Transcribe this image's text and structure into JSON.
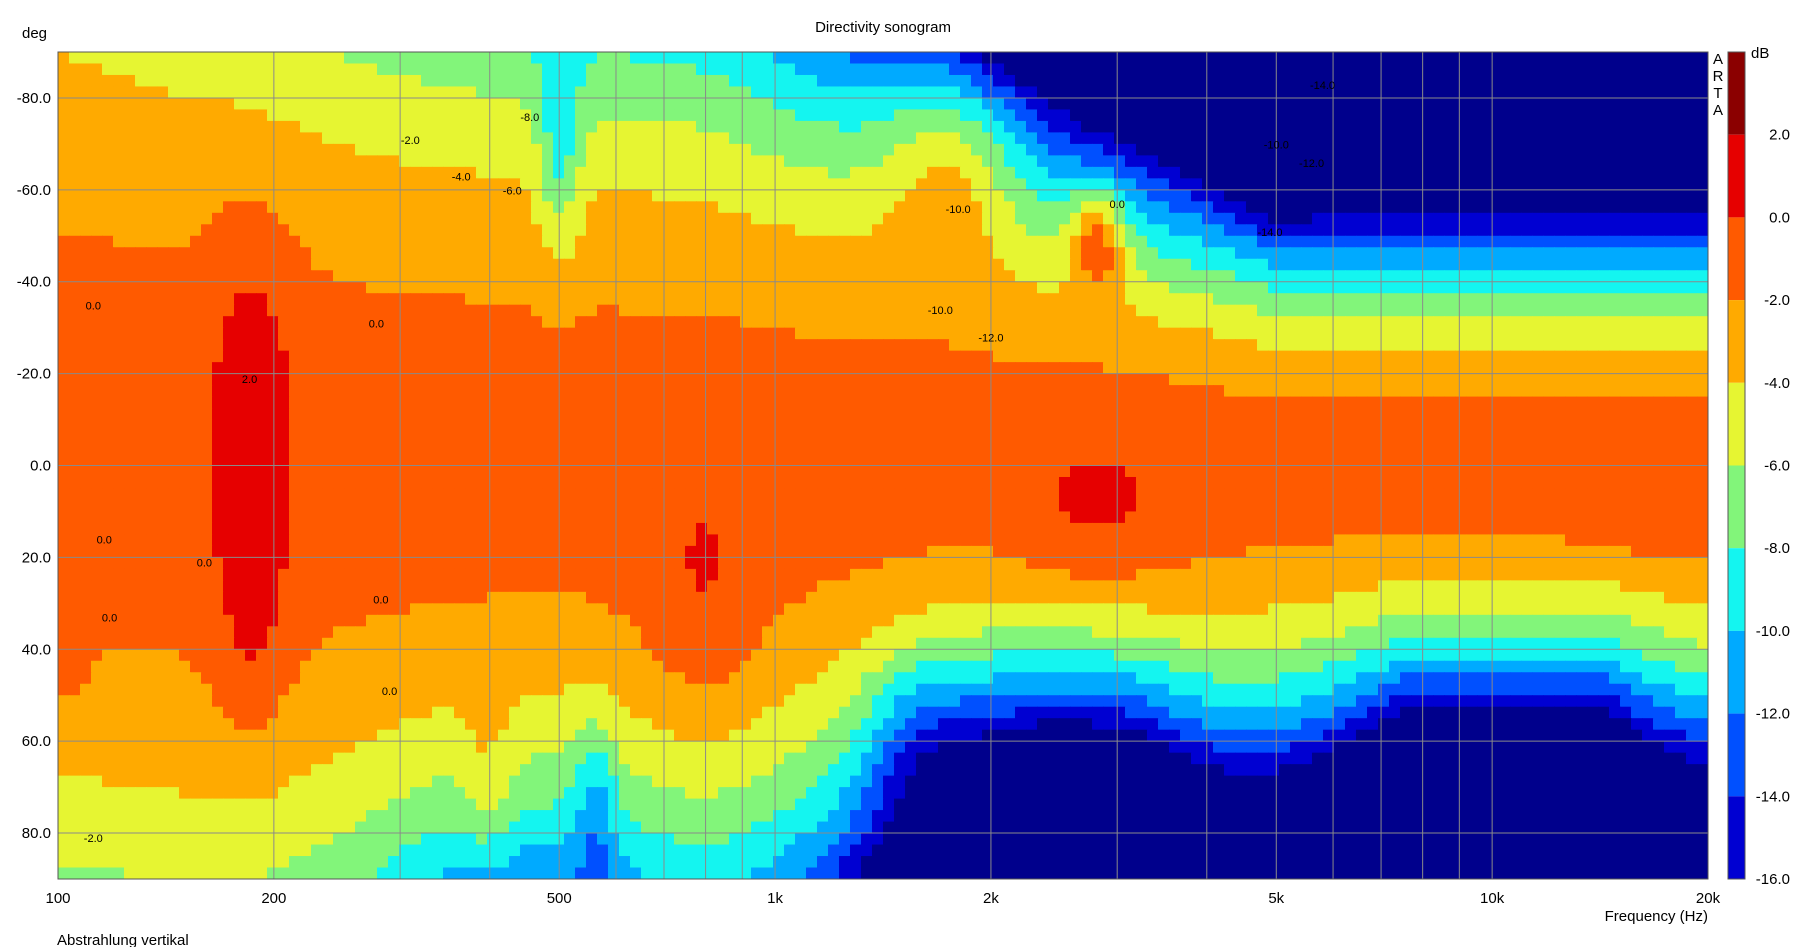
{
  "chart_data": {
    "type": "heatmap",
    "title": "Directivity sonogram",
    "xlabel": "Frequency (Hz)",
    "ylabel": "deg",
    "footer": "Abstrahlung vertikal",
    "watermark": [
      "A",
      "R",
      "T",
      "A"
    ],
    "x_scale": "log",
    "xlim": [
      100,
      20000
    ],
    "ylim": [
      -90,
      90
    ],
    "grid": true,
    "x_ticks": [
      {
        "value": 100,
        "label": "100"
      },
      {
        "value": 200,
        "label": "200"
      },
      {
        "value": 500,
        "label": "500"
      },
      {
        "value": 1000,
        "label": "1k"
      },
      {
        "value": 2000,
        "label": "2k"
      },
      {
        "value": 5000,
        "label": "5k"
      },
      {
        "value": 10000,
        "label": "10k"
      },
      {
        "value": 20000,
        "label": "20k"
      }
    ],
    "y_ticks": [
      {
        "value": -80,
        "label": "-80.0"
      },
      {
        "value": -60,
        "label": "-60.0"
      },
      {
        "value": -40,
        "label": "-40.0"
      },
      {
        "value": -20,
        "label": "-20.0"
      },
      {
        "value": 0,
        "label": "0.0"
      },
      {
        "value": 20,
        "label": "20.0"
      },
      {
        "value": 40,
        "label": "40.0"
      },
      {
        "value": 60,
        "label": "60.0"
      },
      {
        "value": 80,
        "label": "80.0"
      }
    ],
    "colorbar": {
      "unit": "dB",
      "range": [
        -16,
        4
      ],
      "ticks": [
        "2.0",
        "0.0",
        "-2.0",
        "-4.0",
        "-6.0",
        "-8.0",
        "-10.0",
        "-12.0",
        "-14.0",
        "-16.0"
      ],
      "levels": [
        {
          "min": 2,
          "max": 4,
          "color": "#8b0000"
        },
        {
          "min": 0,
          "max": 2,
          "color": "#e60000"
        },
        {
          "min": -2,
          "max": 0,
          "color": "#ff5a00"
        },
        {
          "min": -4,
          "max": -2,
          "color": "#ffaa00"
        },
        {
          "min": -6,
          "max": -4,
          "color": "#e6f532"
        },
        {
          "min": -8,
          "max": -6,
          "color": "#82f57a"
        },
        {
          "min": -10,
          "max": -8,
          "color": "#14f5f0"
        },
        {
          "min": -12,
          "max": -10,
          "color": "#00aaff"
        },
        {
          "min": -14,
          "max": -12,
          "color": "#0050ff"
        },
        {
          "min": -16,
          "max": -14,
          "color": "#0000d2"
        }
      ],
      "below_color": "#00008c"
    },
    "contour_labels": [
      {
        "f": 112,
        "deg": -34,
        "text": "0.0"
      },
      {
        "f": 278,
        "deg": -30,
        "text": "0.0"
      },
      {
        "f": 185,
        "deg": -18,
        "text": "2.0"
      },
      {
        "f": 116,
        "deg": 17,
        "text": "0.0"
      },
      {
        "f": 160,
        "deg": 22,
        "text": "0.0"
      },
      {
        "f": 118,
        "deg": 34,
        "text": "0.0"
      },
      {
        "f": 282,
        "deg": 30,
        "text": "0.0"
      },
      {
        "f": 290,
        "deg": 50,
        "text": "0.0"
      },
      {
        "f": 112,
        "deg": 82,
        "text": "-2.0"
      },
      {
        "f": 310,
        "deg": -70,
        "text": "-2.0"
      },
      {
        "f": 365,
        "deg": -62,
        "text": "-4.0"
      },
      {
        "f": 430,
        "deg": -59,
        "text": "-6.0"
      },
      {
        "f": 455,
        "deg": -75,
        "text": "-8.0"
      },
      {
        "f": 1700,
        "deg": -33,
        "text": "-10.0"
      },
      {
        "f": 1800,
        "deg": -55,
        "text": "-10.0"
      },
      {
        "f": 2000,
        "deg": -27,
        "text": "-12.0"
      },
      {
        "f": 3000,
        "deg": -56,
        "text": "0.0"
      },
      {
        "f": 5000,
        "deg": -69,
        "text": "-10.0"
      },
      {
        "f": 5600,
        "deg": -65,
        "text": "-12.0"
      },
      {
        "f": 4900,
        "deg": -50,
        "text": "-14.0"
      },
      {
        "f": 5800,
        "deg": -82,
        "text": "-14.0"
      }
    ]
  }
}
